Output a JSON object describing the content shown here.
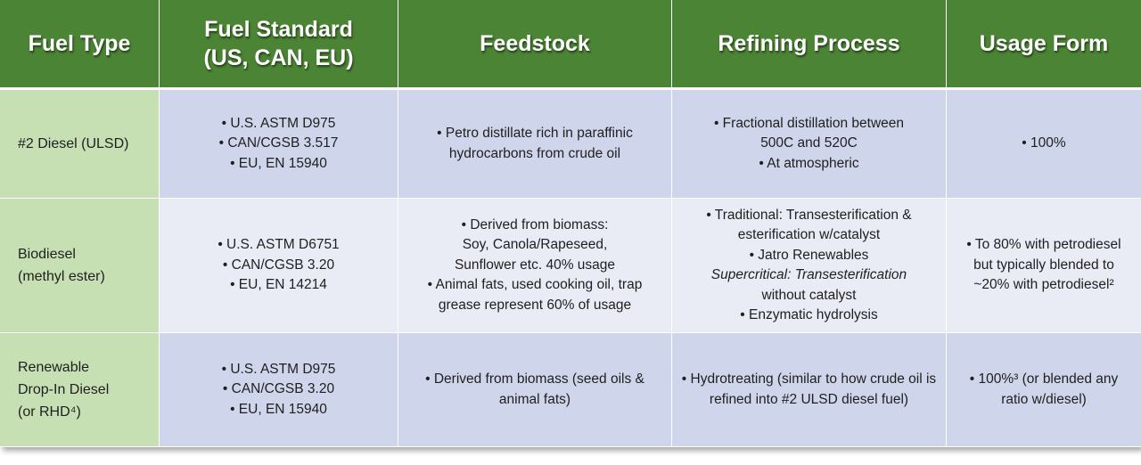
{
  "headers": [
    {
      "line1": "Fuel Type",
      "line2": ""
    },
    {
      "line1": "Fuel Standard",
      "line2": "(US, CAN, EU)"
    },
    {
      "line1": "Feedstock",
      "line2": ""
    },
    {
      "line1": "Refining Process",
      "line2": ""
    },
    {
      "line1": "Usage Form",
      "line2": ""
    }
  ],
  "rows": [
    {
      "fuel_type": [
        "#2 Diesel (ULSD)"
      ],
      "standard": [
        "• U.S. ASTM D975",
        "• CAN/CGSB 3.517",
        "• EU, EN 15940"
      ],
      "feedstock": [
        "• Petro distillate rich in paraffinic",
        "hydrocarbons from crude oil"
      ],
      "process": [
        "• Fractional distillation  between",
        "500C and 520C",
        "• At atmospheric"
      ],
      "usage": [
        "• 100%"
      ]
    },
    {
      "fuel_type": [
        "Biodiesel",
        "(methyl ester)"
      ],
      "standard": [
        "• U.S. ASTM D6751",
        "• CAN/CGSB 3.20",
        "• EU, EN 14214"
      ],
      "feedstock": [
        "• Derived from biomass:",
        "Soy, Canola/Rapeseed,",
        "Sunflower etc. 40% usage",
        "• Animal fats, used cooking oil, trap",
        "grease represent 60% of usage"
      ],
      "process": [
        "• Traditional: Transesterification &",
        "esterification w/catalyst",
        "• Jatro Renewables",
        "Supercritical: Transesterification",
        "without catalyst",
        "• Enzymatic hydrolysis"
      ],
      "usage": [
        "• To 80% with petrodiesel",
        "but typically blended to",
        "~20% with petrodiesel²"
      ]
    },
    {
      "fuel_type": [
        "Renewable",
        "Drop-In Diesel",
        "(or RHD⁴)"
      ],
      "standard": [
        "• U.S. ASTM D975",
        "• CAN/CGSB 3.20",
        "• EU, EN 15940"
      ],
      "feedstock": [
        "• Derived from biomass (seed oils &",
        "animal fats)"
      ],
      "process": [
        "• Hydrotreating (similar to how crude oil is",
        "refined into #2 ULSD diesel fuel)"
      ],
      "usage": [
        "• 100%³ (or blended any",
        "ratio w/diesel)"
      ]
    }
  ],
  "colors": {
    "header_bg": "#4b8434",
    "first_col_bg": "#c6e0b4",
    "row_dark_bg": "#cfd5ea",
    "row_light_bg": "#e9ebf5"
  }
}
